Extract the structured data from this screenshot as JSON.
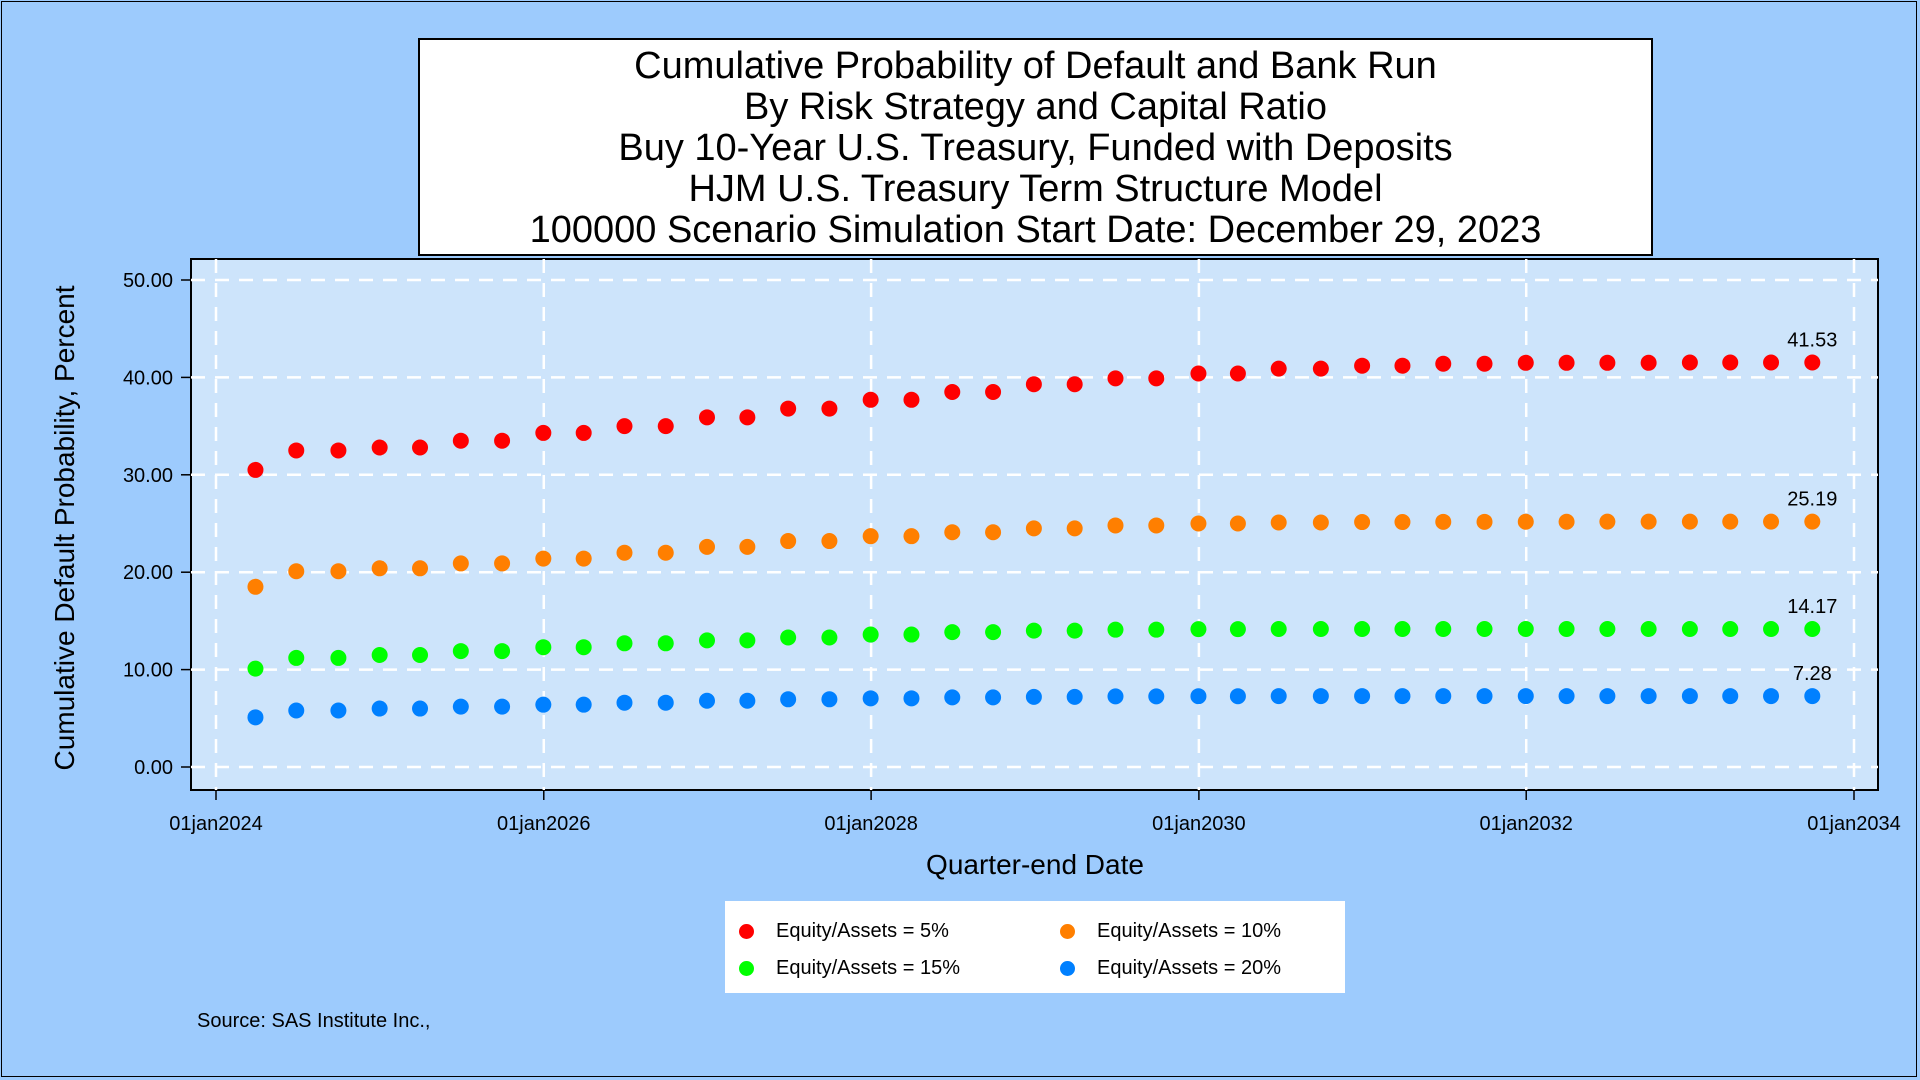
{
  "title_lines": [
    "Cumulative Probability of Default and Bank Run",
    "By Risk Strategy and Capital Ratio",
    "Buy 10-Year U.S. Treasury, Funded with Deposits",
    "HJM U.S. Treasury Term Structure Model",
    "100000 Scenario Simulation Start Date: December 29, 2023"
  ],
  "source": "Source: SAS Institute Inc.,",
  "colors": {
    "page_background": "#9dcbfd",
    "plot_background": "#cde4fb",
    "gridline": "#ffffff"
  },
  "chart_data": {
    "type": "scatter",
    "title": "Cumulative Probability of Default and Bank Run",
    "xlabel": "Quarter-end Date",
    "ylabel": "Cumulative Default Probability, Percent",
    "x_ticks": [
      "01jan2024",
      "01jan2026",
      "01jan2028",
      "01jan2030",
      "01jan2032",
      "01jan2034"
    ],
    "y_ticks": [
      "0.00",
      "10.00",
      "20.00",
      "30.00",
      "40.00",
      "50.00"
    ],
    "xlim": [
      "2024-01-01",
      "2034-01-01"
    ],
    "ylim": [
      0,
      50
    ],
    "grid": true,
    "legend_position": "bottom-center",
    "x": [
      "2024-03-29",
      "2024-06-28",
      "2024-09-30",
      "2024-12-31",
      "2025-03-31",
      "2025-06-30",
      "2025-09-30",
      "2025-12-31",
      "2026-03-31",
      "2026-06-30",
      "2026-09-30",
      "2026-12-31",
      "2027-03-31",
      "2027-06-30",
      "2027-09-30",
      "2027-12-31",
      "2028-03-31",
      "2028-06-30",
      "2028-09-29",
      "2028-12-29",
      "2029-03-30",
      "2029-06-29",
      "2029-09-28",
      "2029-12-31",
      "2030-03-29",
      "2030-06-28",
      "2030-09-30",
      "2030-12-31",
      "2031-03-31",
      "2031-06-30",
      "2031-09-30",
      "2031-12-31",
      "2032-03-31",
      "2032-06-30",
      "2032-09-30",
      "2032-12-31",
      "2033-03-31",
      "2033-06-30",
      "2033-09-30"
    ],
    "series": [
      {
        "name": "Equity/Assets = 5%",
        "color": "#ff0000",
        "end_label": "41.53",
        "values": [
          30.5,
          32.5,
          32.5,
          32.8,
          32.8,
          33.5,
          33.5,
          34.3,
          34.3,
          35.0,
          35.0,
          35.9,
          35.9,
          36.8,
          36.8,
          37.7,
          37.7,
          38.5,
          38.5,
          39.3,
          39.3,
          39.9,
          39.9,
          40.4,
          40.4,
          40.9,
          40.9,
          41.2,
          41.2,
          41.4,
          41.4,
          41.5,
          41.5,
          41.5,
          41.5,
          41.53,
          41.53,
          41.53,
          41.53
        ]
      },
      {
        "name": "Equity/Assets = 10%",
        "color": "#ff7f00",
        "end_label": "25.19",
        "values": [
          18.5,
          20.1,
          20.1,
          20.4,
          20.4,
          20.9,
          20.9,
          21.4,
          21.4,
          22.0,
          22.0,
          22.6,
          22.6,
          23.2,
          23.2,
          23.7,
          23.7,
          24.1,
          24.1,
          24.5,
          24.5,
          24.8,
          24.8,
          25.0,
          25.0,
          25.1,
          25.1,
          25.15,
          25.15,
          25.17,
          25.17,
          25.18,
          25.18,
          25.19,
          25.19,
          25.19,
          25.19,
          25.19,
          25.19
        ]
      },
      {
        "name": "Equity/Assets = 15%",
        "color": "#00ff00",
        "end_label": "14.17",
        "values": [
          10.1,
          11.2,
          11.2,
          11.5,
          11.5,
          11.9,
          11.9,
          12.3,
          12.3,
          12.7,
          12.7,
          13.0,
          13.0,
          13.3,
          13.3,
          13.6,
          13.6,
          13.85,
          13.85,
          14.0,
          14.0,
          14.1,
          14.1,
          14.15,
          14.15,
          14.17,
          14.17,
          14.17,
          14.17,
          14.17,
          14.17,
          14.17,
          14.17,
          14.17,
          14.17,
          14.17,
          14.17,
          14.17,
          14.17
        ]
      },
      {
        "name": "Equity/Assets = 20%",
        "color": "#0080ff",
        "end_label": "7.28",
        "values": [
          5.1,
          5.8,
          5.8,
          6.0,
          6.0,
          6.2,
          6.2,
          6.4,
          6.4,
          6.6,
          6.6,
          6.8,
          6.8,
          6.95,
          6.95,
          7.05,
          7.05,
          7.15,
          7.15,
          7.2,
          7.2,
          7.25,
          7.25,
          7.27,
          7.27,
          7.28,
          7.28,
          7.28,
          7.28,
          7.28,
          7.28,
          7.28,
          7.28,
          7.28,
          7.28,
          7.28,
          7.28,
          7.28,
          7.28
        ]
      }
    ]
  }
}
